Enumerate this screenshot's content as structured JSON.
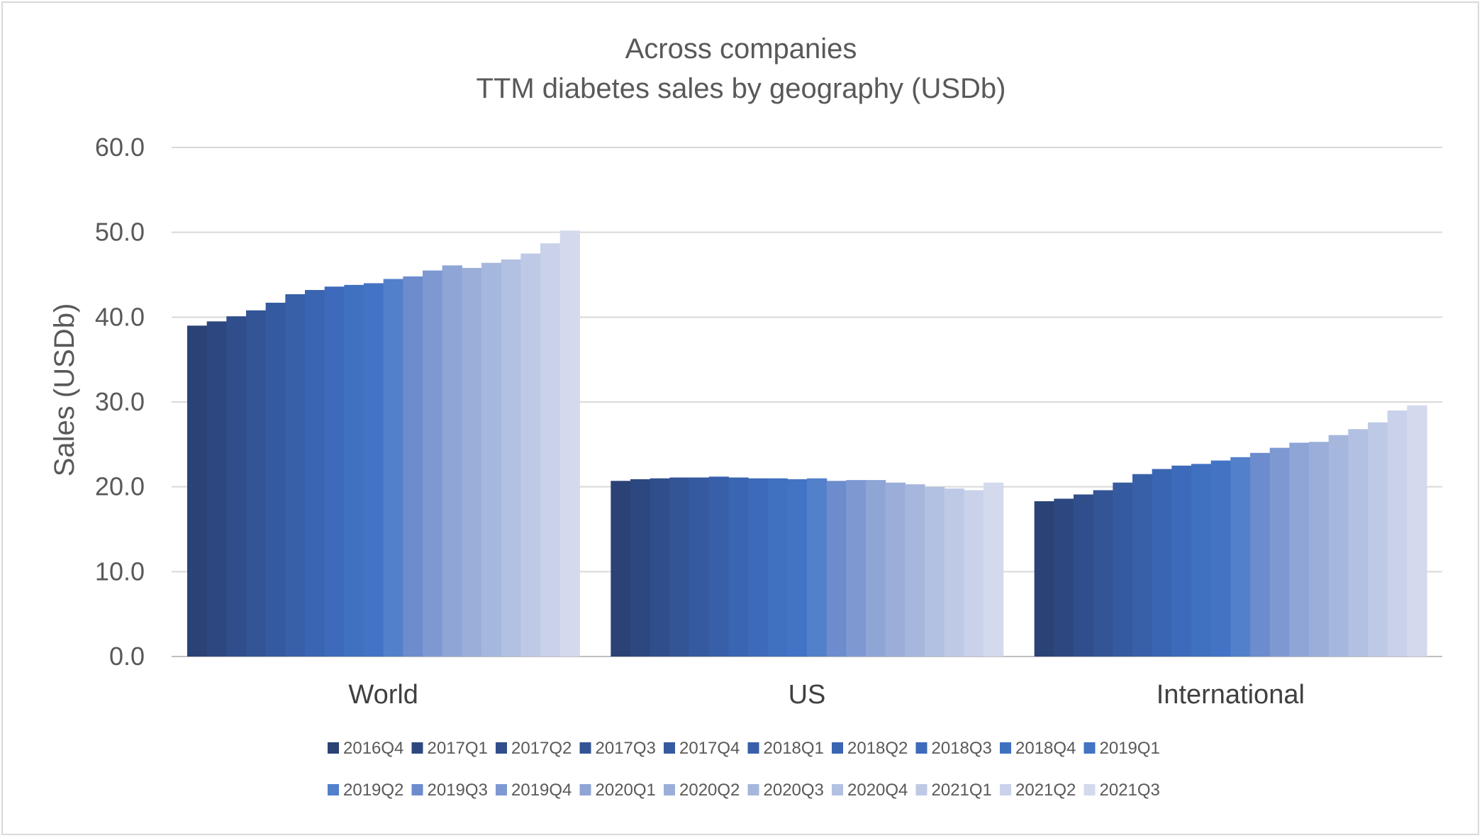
{
  "chart_data": {
    "type": "bar",
    "title": "Across companies",
    "subtitle": "TTM diabetes sales by geography (USDb)",
    "xlabel": "",
    "ylabel": "Sales (USDb)",
    "ylim": [
      0,
      60
    ],
    "yticks": [
      "0.0",
      "10.0",
      "20.0",
      "30.0",
      "40.0",
      "50.0",
      "60.0"
    ],
    "grid": true,
    "legend_position": "bottom",
    "categories": [
      "World",
      "US",
      "International"
    ],
    "series": [
      {
        "name": "2016Q4",
        "color": "#2a4275",
        "values": [
          39.0,
          20.7,
          18.3
        ]
      },
      {
        "name": "2017Q1",
        "color": "#2d4880",
        "values": [
          39.5,
          20.9,
          18.6
        ]
      },
      {
        "name": "2017Q2",
        "color": "#304e8b",
        "values": [
          40.1,
          21.0,
          19.1
        ]
      },
      {
        "name": "2017Q3",
        "color": "#335495",
        "values": [
          40.8,
          21.1,
          19.6
        ]
      },
      {
        "name": "2017Q4",
        "color": "#355a9f",
        "values": [
          41.7,
          21.1,
          20.5
        ]
      },
      {
        "name": "2018Q1",
        "color": "#3860a9",
        "values": [
          42.7,
          21.2,
          21.5
        ]
      },
      {
        "name": "2018Q2",
        "color": "#3a65b2",
        "values": [
          43.2,
          21.1,
          22.1
        ]
      },
      {
        "name": "2018Q3",
        "color": "#3d6aba",
        "values": [
          43.6,
          21.0,
          22.5
        ]
      },
      {
        "name": "2018Q4",
        "color": "#4070c0",
        "values": [
          43.8,
          21.0,
          22.7
        ]
      },
      {
        "name": "2019Q1",
        "color": "#4373c4",
        "values": [
          44.0,
          20.9,
          23.1
        ]
      },
      {
        "name": "2019Q2",
        "color": "#5280cb",
        "values": [
          44.5,
          21.0,
          23.5
        ]
      },
      {
        "name": "2019Q3",
        "color": "#6d8ccd",
        "values": [
          44.8,
          20.7,
          24.0
        ]
      },
      {
        "name": "2019Q4",
        "color": "#7e99d2",
        "values": [
          45.5,
          20.8,
          24.6
        ]
      },
      {
        "name": "2020Q1",
        "color": "#8ea5d6",
        "values": [
          46.1,
          20.8,
          25.2
        ]
      },
      {
        "name": "2020Q2",
        "color": "#9aaed9",
        "values": [
          45.8,
          20.5,
          25.3
        ]
      },
      {
        "name": "2020Q3",
        "color": "#a6b7dd",
        "values": [
          46.4,
          20.3,
          26.1
        ]
      },
      {
        "name": "2020Q4",
        "color": "#b2c0e1",
        "values": [
          46.8,
          20.0,
          26.8
        ]
      },
      {
        "name": "2021Q1",
        "color": "#bec9e5",
        "values": [
          47.5,
          19.8,
          27.6
        ]
      },
      {
        "name": "2021Q2",
        "color": "#c9d2ea",
        "values": [
          48.7,
          19.6,
          29.0
        ]
      },
      {
        "name": "2021Q3",
        "color": "#d3daee",
        "values": [
          50.2,
          20.5,
          29.6
        ]
      }
    ]
  }
}
